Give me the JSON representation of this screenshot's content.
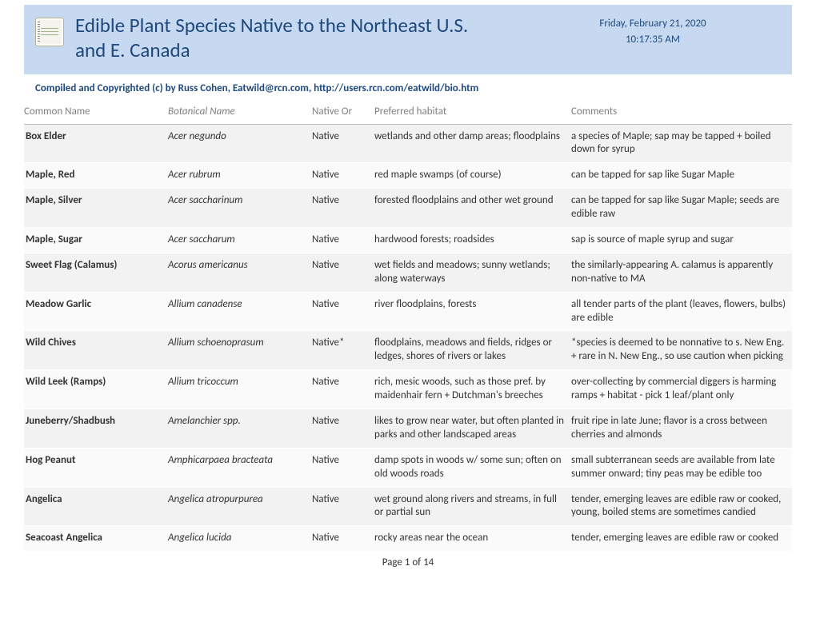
{
  "header": {
    "title": "Edible Plant Species Native to the Northeast U.S. and E. Canada",
    "date": "Friday, February 21, 2020",
    "time": "10:17:35 AM",
    "byline": "Compiled and Copyrighted (c) by Russ Cohen, Eatwild@rcn.com, http://users.rcn.com/eatwild/bio.htm"
  },
  "columns": {
    "common": "Common Name",
    "botanical": "Botanical Name",
    "native": "Native Or",
    "habitat": "Preferred habitat",
    "comments": "Comments"
  },
  "rows": [
    {
      "common": "Box Elder",
      "botanical": "Acer negundo",
      "native": "Native",
      "habitat": "wetlands and other damp areas; floodplains",
      "comments": "a species of Maple; sap may be tapped + boiled down for syrup"
    },
    {
      "common": "Maple, Red",
      "botanical": "Acer rubrum",
      "native": "Native",
      "habitat": "red maple swamps (of course)",
      "comments": "can be tapped for sap like Sugar Maple"
    },
    {
      "common": "Maple, Silver",
      "botanical": "Acer saccharinum",
      "native": "Native",
      "habitat": "forested floodplains and other wet ground",
      "comments": "can be tapped for sap like Sugar Maple; seeds are edible raw"
    },
    {
      "common": "Maple, Sugar",
      "botanical": "Acer saccharum",
      "native": "Native",
      "habitat": "hardwood forests; roadsides",
      "comments": "sap is source of maple syrup and sugar"
    },
    {
      "common": "Sweet Flag (Calamus)",
      "botanical": "Acorus americanus",
      "native": "Native",
      "habitat": "wet fields and meadows; sunny wetlands; along waterways",
      "comments": "the similarly-appearing A. calamus is apparently non-native to MA"
    },
    {
      "common": "Meadow Garlic",
      "botanical": "Allium canadense",
      "native": "Native",
      "habitat": "river floodplains, forests",
      "comments": "all tender parts of the plant (leaves, flowers, bulbs) are edible"
    },
    {
      "common": "Wild Chives",
      "botanical": "Allium schoenoprasum",
      "native": "Native*",
      "habitat": "floodplains, meadows and fields, ridges or ledges, shores of rivers or lakes",
      "comments": "*species is deemed to be nonnative to s. New Eng. + rare in N. New Eng., so use caution when picking"
    },
    {
      "common": "Wild Leek (Ramps)",
      "botanical": "Allium tricoccum",
      "native": "Native",
      "habitat": "rich, mesic woods, such as those pref. by maidenhair fern + Dutchman's breeches",
      "comments": "over-collecting by commercial diggers is harming ramps + habitat - pick 1 leaf/plant only"
    },
    {
      "common": "Juneberry/Shadbush",
      "botanical": "Amelanchier spp.",
      "native": "Native",
      "habitat": "likes to grow near water, but often planted in parks and other landscaped areas",
      "comments": "fruit ripe in late June; flavor is a cross between cherries and almonds"
    },
    {
      "common": "Hog Peanut",
      "botanical": "Amphicarpaea bracteata",
      "native": "Native",
      "habitat": "damp spots in woods w/ some sun; often on old woods roads",
      "comments": "small subterranean seeds are available from late summer onward; tiny peas may be edible too"
    },
    {
      "common": "Angelica",
      "botanical": "Angelica atropurpurea",
      "native": "Native",
      "habitat": "wet ground along rivers and streams, in full or partial sun",
      "comments": "tender, emerging leaves are edible raw or cooked, young, boiled stems are sometimes candied"
    },
    {
      "common": "Seacoast Angelica",
      "botanical": "Angelica lucida",
      "native": "Native",
      "habitat": "rocky areas near the ocean",
      "comments": "tender, emerging leaves are edible raw or cooked"
    }
  ],
  "footer": {
    "pager": "Page 1 of 14"
  },
  "colors": {
    "header_bg": "#c6d9f1",
    "title": "#1f497d",
    "th_text": "#7f7f7f",
    "row_odd_bg": "#f2f2f2",
    "row_even_bg": "#fafafa",
    "th_border": "#bfbfbf"
  }
}
